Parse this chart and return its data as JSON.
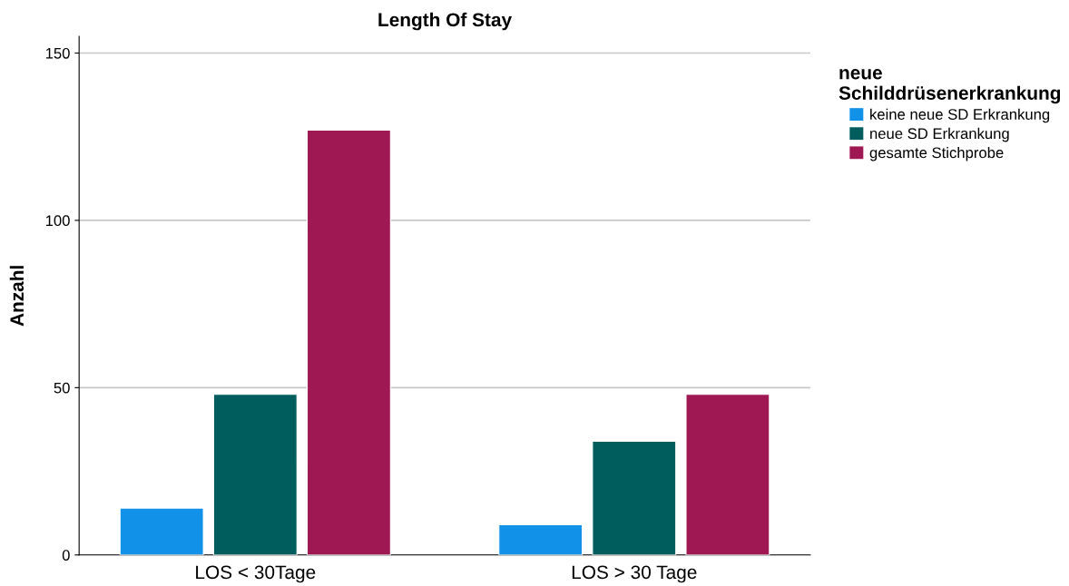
{
  "chart_data": {
    "type": "bar",
    "title": "Length Of Stay",
    "ylabel": "Anzahl",
    "legend_title": "neue\nSchilddrüsenerkrankung",
    "categories": [
      "LOS < 30Tage",
      "LOS > 30 Tage"
    ],
    "series": [
      {
        "name": "keine neue SD Erkrankung",
        "color": "#1192e8",
        "values": [
          14,
          9
        ]
      },
      {
        "name": "neue SD Erkrankung",
        "color": "#005d5d",
        "values": [
          48,
          34
        ]
      },
      {
        "name": "gesamte Stichprobe",
        "color": "#9f1853",
        "values": [
          127,
          48
        ]
      }
    ],
    "ylim": [
      0,
      155
    ],
    "yticks": [
      0,
      50,
      100,
      150
    ],
    "grid": "y",
    "legend": "right"
  }
}
